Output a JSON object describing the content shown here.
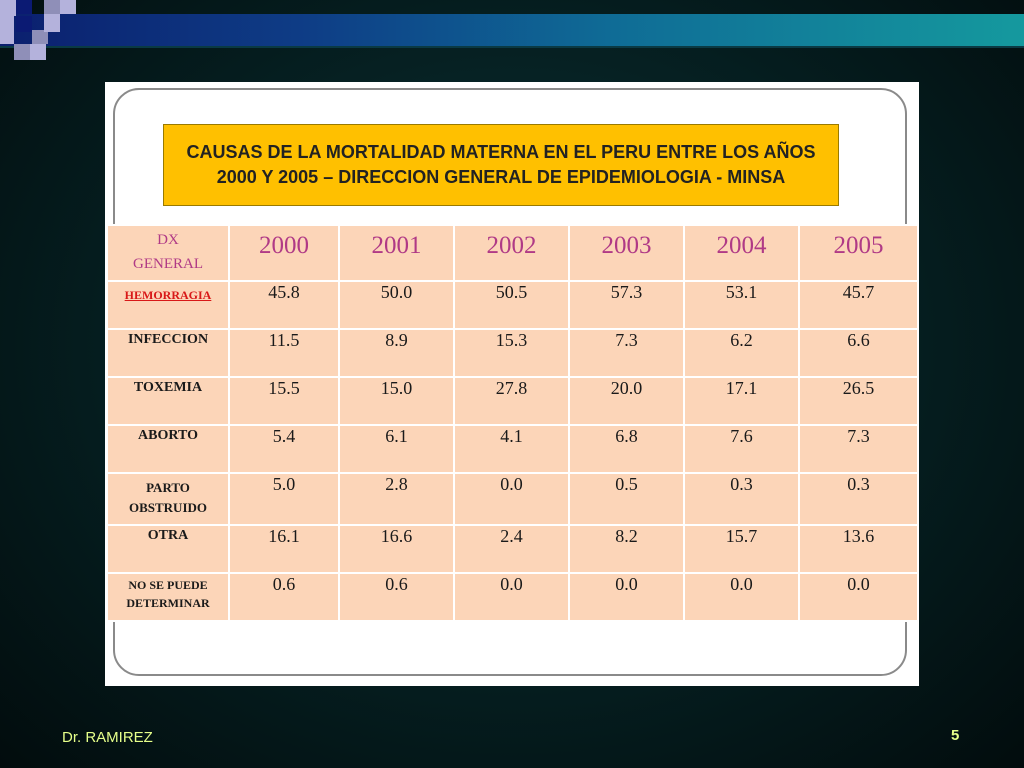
{
  "title": "CAUSAS DE LA MORTALIDAD MATERNA EN EL PERU ENTRE LOS AÑOS 2000 Y 2005 – DIRECCION GENERAL DE EPIDEMIOLOGIA - MINSA",
  "table": {
    "corner_header": [
      "DX",
      "GENERAL"
    ],
    "years": [
      "2000",
      "2001",
      "2002",
      "2003",
      "2004",
      "2005"
    ],
    "rows": [
      {
        "label": [
          "HEMORRAGIA"
        ],
        "values": [
          "45.8",
          "50.0",
          "50.5",
          "57.3",
          "53.1",
          "45.7"
        ]
      },
      {
        "label": [
          "INFECCION"
        ],
        "values": [
          "11.5",
          "8.9",
          "15.3",
          "7.3",
          "6.2",
          "6.6"
        ]
      },
      {
        "label": [
          "TOXEMIA"
        ],
        "values": [
          "15.5",
          "15.0",
          "27.8",
          "20.0",
          "17.1",
          "26.5"
        ]
      },
      {
        "label": [
          "ABORTO"
        ],
        "values": [
          "5.4",
          "6.1",
          "4.1",
          "6.8",
          "7.6",
          "7.3"
        ]
      },
      {
        "label": [
          "PARTO",
          "OBSTRUIDO"
        ],
        "values": [
          "5.0",
          "2.8",
          "0.0",
          "0.5",
          "0.3",
          "0.3"
        ]
      },
      {
        "label": [
          "OTRA"
        ],
        "values": [
          "16.1",
          "16.6",
          "2.4",
          "8.2",
          "15.7",
          "13.6"
        ]
      },
      {
        "label": [
          "NO SE PUEDE",
          "DETERMINAR"
        ],
        "values": [
          "0.6",
          "0.6",
          "0.0",
          "0.0",
          "0.0",
          "0.0"
        ]
      }
    ]
  },
  "footer": {
    "author": "Dr. RAMIREZ",
    "page_number": "5"
  }
}
